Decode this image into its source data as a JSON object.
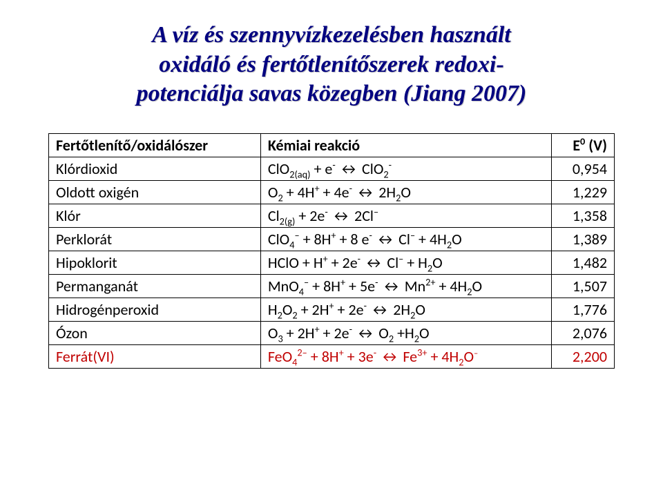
{
  "title": {
    "line1": "A víz és szennyvízkezelésben használt",
    "line2": "oxidáló és fertőtlenítőszerek redoxi-",
    "line3": "potenciálja savas közegben (Jiang 2007)"
  },
  "table": {
    "headers": {
      "agent": "Fertőtlenítő/oxidálószer",
      "reaction": "Kémiai reakció",
      "value_html": "E<sup>0</sup> (V)"
    },
    "rows": [
      {
        "name": "Klórdioxid",
        "reaction_html": "ClO<sub>2(aq)</sub> + e<sup>-</sup> ↔ ClO<sub>2</sub><sup>-</sup>",
        "value": "0,954",
        "highlight": false
      },
      {
        "name": "Oldott oxigén",
        "reaction_html": "O<sub>2</sub> + 4H<sup>+</sup> + 4e<sup>-</sup> ↔  2H<sub>2</sub>O",
        "value": "1,229",
        "highlight": false
      },
      {
        "name": "Klór",
        "reaction_html": "Cl<sub>2(g)</sub> + 2e<sup>-</sup> ↔ 2Cl<sup>–</sup>",
        "value": "1,358",
        "highlight": false
      },
      {
        "name": "Perklorát",
        "reaction_html": "ClO<sub>4</sub><sup>–</sup> + 8H<sup>+</sup> + 8 e<sup>-</sup> ↔ Cl<sup>–</sup> + 4H<sub>2</sub>O",
        "value": "1,389",
        "highlight": false
      },
      {
        "name": "Hipoklorit",
        "reaction_html": "HClO + H<sup>+</sup> + 2e<sup>-</sup> ↔ Cl<sup>–</sup> + H<sub>2</sub>O",
        "value": "1,482",
        "highlight": false
      },
      {
        "name": "Permanganát",
        "reaction_html": "MnO<sub>4</sub><sup>–</sup> + 8H<sup>+</sup> + 5e<sup>-</sup> ↔  Mn<sup>2+</sup> + 4H<sub>2</sub>O",
        "value": "1,507",
        "highlight": false
      },
      {
        "name": "Hidrogénperoxid",
        "reaction_html": "H<sub>2</sub>O<sub>2</sub> + 2H<sup>+</sup> + 2e<sup>-</sup> ↔  2H<sub>2</sub>O",
        "value": "1,776",
        "highlight": false
      },
      {
        "name": "Ózon",
        "reaction_html": "O<sub>3</sub> + 2H<sup>+</sup> + 2e<sup>-</sup> ↔ O<sub>2</sub> +H<sub>2</sub>O",
        "value": "2,076",
        "highlight": false
      },
      {
        "name": "Ferrát(VI)",
        "reaction_html": "FeO<sub>4</sub><sup>2–</sup> + 8H<sup>+</sup> + 3e<sup>-</sup> ↔  Fe<sup>3+</sup> + 4H<sub>2</sub>O<sup class=\"sup-smaller\">–</sup>",
        "value": "2,200",
        "highlight": true
      }
    ]
  },
  "colors": {
    "title_color": "#000080",
    "highlight_color": "#c00000",
    "border_color": "#000000",
    "background": "#ffffff"
  },
  "fonts": {
    "title_family": "Times New Roman",
    "title_size_pt": 26,
    "table_family": "Calibri",
    "table_size_pt": 17
  }
}
